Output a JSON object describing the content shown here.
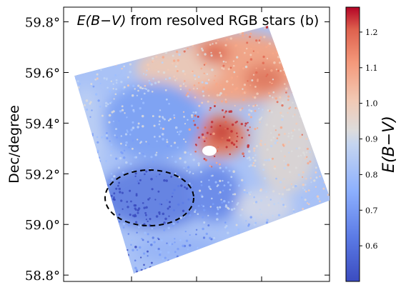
{
  "chart_data": {
    "type": "scatter",
    "title_italic": "E(B−V)",
    "title_rest": " from resolved RGB stars (b)",
    "ylabel": "Dec/degree",
    "xlabel": "",
    "y_ticks": [
      {
        "value": 59.8,
        "label": "59.8°"
      },
      {
        "value": 59.6,
        "label": "59.6°"
      },
      {
        "value": 59.4,
        "label": "59.4°"
      },
      {
        "value": 59.2,
        "label": "59.2°"
      },
      {
        "value": 59.0,
        "label": "59.0°"
      },
      {
        "value": 58.8,
        "label": "58.8°"
      }
    ],
    "ylim": [
      58.775,
      59.858
    ],
    "x_tick_count": 3,
    "grid": false,
    "colorbar": {
      "label": "E(B−V)",
      "range": [
        0.5,
        1.27
      ],
      "ticks": [
        {
          "value": 1.2,
          "label": "1.2"
        },
        {
          "value": 1.1,
          "label": "1.1"
        },
        {
          "value": 1.0,
          "label": "1.0"
        },
        {
          "value": 0.9,
          "label": "0.9"
        },
        {
          "value": 0.8,
          "label": "0.8"
        },
        {
          "value": 0.7,
          "label": "0.7"
        },
        {
          "value": 0.6,
          "label": "0.6"
        }
      ],
      "colormap": "coolwarm"
    },
    "annotations": [
      {
        "type": "dashed-ellipse",
        "center_dec": 59.1,
        "color": "#000000"
      }
    ],
    "notes": "Dense map of individual RGB stars colored by E(B-V); high extinction (red, ~1.1-1.25) toward the north-east and a ring around a small central hole, low extinction (blue, ~0.55-0.75) in the south-west inside the dashed ellipse."
  }
}
